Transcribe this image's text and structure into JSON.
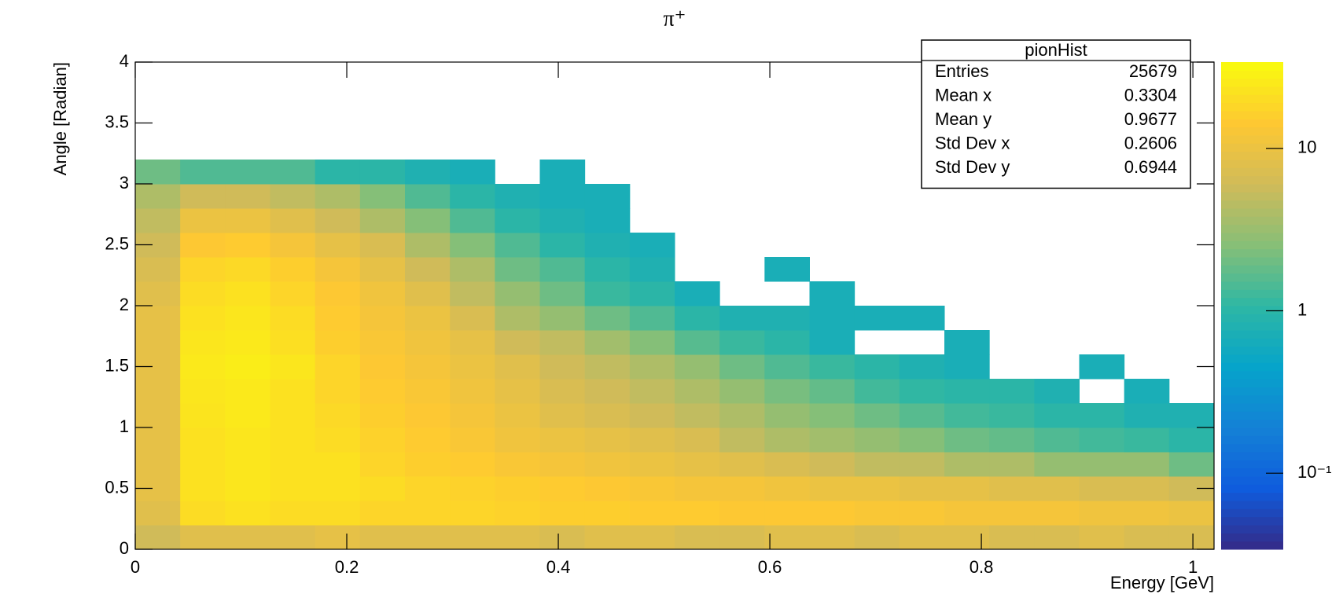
{
  "chart_data": {
    "type": "heatmap",
    "title": "π⁺",
    "x_label": "Energy [GeV]",
    "y_label": "Angle [Radian]",
    "xbins": [
      0,
      0.0425,
      0.085,
      0.1275,
      0.17,
      0.2125,
      0.255,
      0.2975,
      0.34,
      0.3825,
      0.425,
      0.4675,
      0.51,
      0.5525,
      0.595,
      0.6375,
      0.68,
      0.7225,
      0.765,
      0.8075,
      0.85,
      0.8925,
      0.935,
      0.9775,
      1.02
    ],
    "ybins": [
      0,
      0.2,
      0.4,
      0.6,
      0.8,
      1,
      1.2,
      1.4,
      1.6,
      1.8,
      2,
      2.2,
      2.4,
      2.6,
      2.8,
      3,
      3.2
    ],
    "z": [
      [
        6,
        8,
        8,
        8,
        9,
        8,
        8,
        8,
        8,
        7,
        8,
        8,
        7,
        7,
        8,
        8,
        7,
        8,
        8,
        7,
        7,
        8,
        7,
        7
      ],
      [
        8,
        20,
        22,
        20,
        20,
        18,
        18,
        18,
        17,
        16,
        16,
        15,
        15,
        14,
        14,
        14,
        13,
        13,
        12,
        12,
        12,
        11,
        11,
        10
      ],
      [
        9,
        22,
        24,
        22,
        22,
        20,
        18,
        17,
        16,
        15,
        14,
        13,
        12,
        12,
        11,
        10,
        10,
        9,
        9,
        8,
        8,
        7,
        7,
        6
      ],
      [
        9,
        22,
        24,
        22,
        22,
        18,
        16,
        15,
        13,
        12,
        11,
        10,
        9,
        8,
        7,
        6,
        5,
        5,
        4,
        4,
        3,
        3,
        3,
        2
      ],
      [
        9,
        22,
        24,
        22,
        20,
        17,
        15,
        13,
        11,
        10,
        9,
        8,
        7,
        5,
        4,
        3.5,
        3,
        2.5,
        2,
        1.8,
        1.5,
        1.3,
        1.2,
        1
      ],
      [
        9,
        23,
        25,
        22,
        19,
        16,
        14,
        12,
        10,
        8,
        7,
        6,
        5,
        4,
        3,
        2.5,
        2,
        1.6,
        1.3,
        1.2,
        1,
        1,
        0.8,
        0.8
      ],
      [
        9,
        24,
        25,
        22,
        18,
        15,
        13,
        11,
        9,
        7,
        6,
        5,
        4,
        3,
        2.2,
        1.8,
        1.3,
        1.1,
        1,
        1,
        0.8,
        null,
        0.7,
        null
      ],
      [
        9,
        25,
        27,
        24,
        18,
        14,
        12,
        10,
        8,
        6,
        5,
        4,
        3,
        2,
        1.5,
        1.2,
        1,
        0.8,
        0.7,
        null,
        null,
        0.7,
        null,
        null
      ],
      [
        9,
        24,
        25,
        21,
        16,
        13,
        11,
        9,
        6,
        5,
        3.5,
        2.5,
        1.6,
        1.2,
        1,
        0.7,
        null,
        null,
        0.7,
        null,
        null,
        null,
        null,
        null
      ],
      [
        9,
        22,
        24,
        20,
        15,
        12,
        10,
        7,
        4,
        3,
        2,
        1.5,
        1,
        0.8,
        0.8,
        0.7,
        0.7,
        0.7,
        null,
        null,
        null,
        null,
        null,
        null
      ],
      [
        8,
        20,
        22,
        18,
        14,
        11,
        8,
        5,
        3,
        2,
        1.2,
        1,
        0.7,
        null,
        null,
        0.7,
        null,
        null,
        null,
        null,
        null,
        null,
        null,
        null
      ],
      [
        7,
        18,
        19,
        16,
        12,
        9,
        6,
        4,
        2,
        1.5,
        1,
        0.8,
        null,
        null,
        0.7,
        null,
        null,
        null,
        null,
        null,
        null,
        null,
        null,
        null
      ],
      [
        6,
        14,
        15,
        12,
        9,
        7,
        4,
        2.5,
        1.5,
        1,
        0.8,
        0.7,
        null,
        null,
        null,
        null,
        null,
        null,
        null,
        null,
        null,
        null,
        null,
        null
      ],
      [
        5,
        10,
        10,
        8,
        6,
        4,
        2.5,
        1.5,
        1,
        0.8,
        0.7,
        null,
        null,
        null,
        null,
        null,
        null,
        null,
        null,
        null,
        null,
        null,
        null,
        null
      ],
      [
        4,
        6,
        6,
        5,
        4,
        2.5,
        1.5,
        1,
        0.8,
        0.7,
        0.7,
        null,
        null,
        null,
        null,
        null,
        null,
        null,
        null,
        null,
        null,
        null,
        null,
        null
      ],
      [
        2,
        1.5,
        1.5,
        1.5,
        1,
        1,
        0.8,
        0.7,
        null,
        0.7,
        null,
        null,
        null,
        null,
        null,
        null,
        null,
        null,
        null,
        null,
        null,
        null,
        null,
        null
      ]
    ],
    "xlim": [
      0,
      1.02
    ],
    "ylim": [
      0,
      4
    ],
    "xticks": [
      0,
      0.2,
      0.4,
      0.6,
      0.8,
      1
    ],
    "yticks": [
      0,
      0.5,
      1,
      1.5,
      2,
      2.5,
      3,
      3.5,
      4
    ],
    "zlim": [
      0.034,
      34
    ],
    "zscale": "log",
    "zticks": [
      {
        "value": 0.1,
        "label": "10⁻¹"
      },
      1,
      10
    ],
    "palette": [
      "#352a87",
      "#0f5cdd",
      "#1481d6",
      "#06a4ca",
      "#2eb7a4",
      "#87bf77",
      "#d1bb59",
      "#fec832",
      "#f9fb0e"
    ],
    "stats": {
      "title": "pionHist",
      "rows": [
        [
          "Entries",
          25679
        ],
        [
          "Mean x",
          0.3304
        ],
        [
          "Mean y",
          0.9677
        ],
        [
          "Std Dev x",
          0.2606
        ],
        [
          "Std Dev y",
          0.6944
        ]
      ]
    }
  }
}
